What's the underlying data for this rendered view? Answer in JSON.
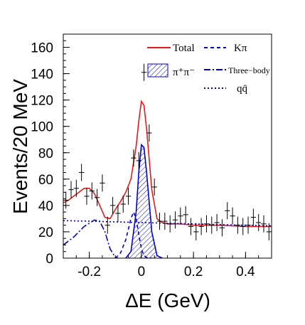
{
  "chart_data": {
    "type": "scatter",
    "xlabel": "ΔE (GeV)",
    "ylabel": "Events/20 MeV",
    "xlim": [
      -0.3,
      0.5
    ],
    "ylim": [
      0,
      170
    ],
    "x_ticks": [
      {
        "value": -0.2,
        "label": "-0.2"
      },
      {
        "value": 0.0,
        "label": "0"
      },
      {
        "value": 0.2,
        "label": "0.2"
      },
      {
        "value": 0.4,
        "label": "0.4"
      }
    ],
    "y_ticks": [
      {
        "value": 0,
        "label": "0"
      },
      {
        "value": 20,
        "label": "20"
      },
      {
        "value": 40,
        "label": "40"
      },
      {
        "value": 60,
        "label": "60"
      },
      {
        "value": 80,
        "label": "80"
      },
      {
        "value": 100,
        "label": "100"
      },
      {
        "value": 120,
        "label": "120"
      },
      {
        "value": 140,
        "label": "140"
      },
      {
        "value": 160,
        "label": "160"
      }
    ],
    "grid": false,
    "legend_position": "top-right",
    "legend": [
      {
        "label": "Total",
        "color": "#e41a1c",
        "style": "solid"
      },
      {
        "label": "Kπ",
        "color": "#0000cc",
        "style": "dashed"
      },
      {
        "label": "π⁺π⁻",
        "color": "#0000cc",
        "style": "hatched"
      },
      {
        "label": "Three−body",
        "color": "#0000cc",
        "style": "dashdot"
      },
      {
        "label": "qq̄",
        "color": "#0000cc",
        "style": "dotted"
      }
    ],
    "data_points": {
      "x": [
        -0.29,
        -0.27,
        -0.25,
        -0.23,
        -0.21,
        -0.19,
        -0.17,
        -0.15,
        -0.13,
        -0.11,
        -0.09,
        -0.07,
        -0.05,
        -0.03,
        -0.01,
        0.01,
        0.03,
        0.05,
        0.07,
        0.09,
        0.11,
        0.13,
        0.15,
        0.17,
        0.19,
        0.21,
        0.23,
        0.25,
        0.27,
        0.29,
        0.31,
        0.33,
        0.35,
        0.37,
        0.39,
        0.41,
        0.43,
        0.45,
        0.47,
        0.49
      ],
      "y": [
        44,
        52,
        53,
        65,
        47,
        51,
        46,
        57,
        25,
        40,
        34,
        41,
        47,
        76,
        74,
        141,
        95,
        54,
        28,
        28,
        26,
        29,
        32,
        33,
        24,
        20,
        24,
        26,
        25,
        27,
        23,
        36,
        32,
        25,
        24,
        25,
        31,
        27,
        26,
        20
      ],
      "yerr": 6.5,
      "xerr": 0.01
    },
    "series": [
      {
        "name": "Total",
        "color": "#e41a1c",
        "x": [
          -0.3,
          -0.28,
          -0.26,
          -0.24,
          -0.22,
          -0.2,
          -0.18,
          -0.16,
          -0.14,
          -0.12,
          -0.1,
          -0.08,
          -0.06,
          -0.04,
          -0.02,
          -0.01,
          0.0,
          0.01,
          0.02,
          0.04,
          0.06,
          0.08,
          0.1,
          0.15,
          0.2,
          0.3,
          0.4,
          0.5
        ],
        "y": [
          42,
          44,
          47,
          50,
          53,
          53,
          49,
          40,
          31,
          30,
          37,
          43,
          50,
          60,
          85,
          104,
          119,
          116,
          98,
          52,
          30,
          27,
          26,
          26,
          25,
          25,
          24,
          24
        ]
      },
      {
        "name": "Kπ",
        "color": "#0000cc",
        "x": [
          -0.1,
          -0.08,
          -0.06,
          -0.04,
          -0.03,
          -0.02,
          -0.01,
          0.0,
          0.01,
          0.02,
          0.04
        ],
        "y": [
          0,
          4,
          14,
          30,
          35,
          30,
          18,
          7,
          2,
          0.5,
          0
        ]
      },
      {
        "name": "π⁺π⁻",
        "color": "#0000cc",
        "x": [
          -0.06,
          -0.04,
          -0.02,
          -0.01,
          0.0,
          0.01,
          0.02,
          0.04,
          0.06,
          0.08
        ],
        "y": [
          0,
          5,
          35,
          65,
          86,
          84,
          65,
          20,
          2,
          0
        ]
      },
      {
        "name": "Three−body",
        "color": "#0000cc",
        "x": [
          -0.3,
          -0.26,
          -0.22,
          -0.18,
          -0.16,
          -0.14,
          -0.12,
          -0.1,
          -0.09
        ],
        "y": [
          10,
          16,
          24,
          29,
          28,
          20,
          7,
          0.5,
          0
        ]
      },
      {
        "name": "qq̄",
        "color": "#0000cc",
        "x": [
          -0.3,
          -0.1,
          0.1,
          0.3,
          0.5
        ],
        "y": [
          28.5,
          27.5,
          26.5,
          25.5,
          24.5
        ]
      }
    ]
  }
}
